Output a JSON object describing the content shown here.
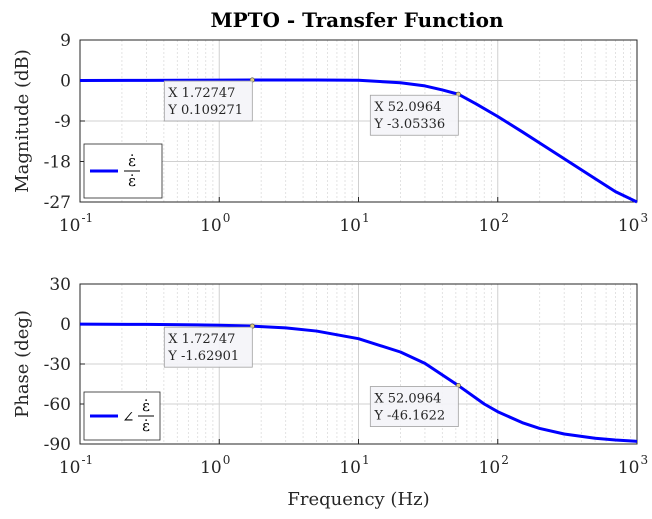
{
  "chart_data": [
    {
      "type": "line",
      "title": "MPTO - Transfer Function",
      "xlabel": "",
      "ylabel": "Magnitude (dB)",
      "xscale": "log",
      "xlim": [
        0.1,
        1000
      ],
      "ylim": [
        -27,
        9
      ],
      "x_ticks": [
        {
          "value": 0.1,
          "base": "10",
          "exp": "-1"
        },
        {
          "value": 1,
          "base": "10",
          "exp": "0"
        },
        {
          "value": 10,
          "base": "10",
          "exp": "1"
        },
        {
          "value": 100,
          "base": "10",
          "exp": "2"
        },
        {
          "value": 1000,
          "base": "10",
          "exp": "3"
        }
      ],
      "y_ticks": [
        9,
        0,
        -9,
        -18,
        -27
      ],
      "grid": "on",
      "legend": {
        "location": "bottom-left",
        "entry": "ε̇ / ε̇"
      },
      "series": [
        {
          "color": "#0000ff",
          "x": [
            0.1,
            0.3,
            1,
            1.72747,
            3,
            5,
            10,
            20,
            30,
            40,
            52.0964,
            70,
            100,
            150,
            200,
            300,
            500,
            700,
            1000
          ],
          "y": [
            0.0,
            0.02,
            0.08,
            0.109271,
            0.12,
            0.11,
            0.06,
            -0.5,
            -1.2,
            -2.1,
            -3.05336,
            -5.2,
            -8.0,
            -11.4,
            -13.9,
            -17.4,
            -21.8,
            -24.7,
            -27.0
          ]
        }
      ],
      "datatips": [
        {
          "x": 1.72747,
          "y": 0.109271,
          "x_text": "X 1.72747",
          "y_text": "Y 0.109271"
        },
        {
          "x": 52.0964,
          "y": -3.05336,
          "x_text": "X 52.0964",
          "y_text": "Y -3.05336"
        }
      ]
    },
    {
      "type": "line",
      "title": "",
      "xlabel": "Frequency (Hz)",
      "ylabel": "Phase (deg)",
      "xscale": "log",
      "xlim": [
        0.1,
        1000
      ],
      "ylim": [
        -90,
        30
      ],
      "x_ticks": [
        {
          "value": 0.1,
          "base": "10",
          "exp": "-1"
        },
        {
          "value": 1,
          "base": "10",
          "exp": "0"
        },
        {
          "value": 10,
          "base": "10",
          "exp": "1"
        },
        {
          "value": 100,
          "base": "10",
          "exp": "2"
        },
        {
          "value": 1000,
          "base": "10",
          "exp": "3"
        }
      ],
      "y_ticks": [
        30,
        0,
        -30,
        -60,
        -90
      ],
      "grid": "on",
      "legend": {
        "location": "bottom-left",
        "entry": "∠ ε̇ / ε̇"
      },
      "series": [
        {
          "color": "#0000ff",
          "x": [
            0.1,
            0.3,
            0.7,
            1,
            1.72747,
            3,
            5,
            10,
            20,
            30,
            52.0964,
            80,
            100,
            150,
            200,
            300,
            500,
            700,
            1000
          ],
          "y": [
            -0.1,
            -0.3,
            -0.7,
            -0.95,
            -1.62901,
            -2.9,
            -5.3,
            -11.0,
            -21.0,
            -29.5,
            -46.1622,
            -60.0,
            -65.8,
            -74.0,
            -78.3,
            -82.5,
            -85.7,
            -87.0,
            -88.0
          ]
        }
      ],
      "datatips": [
        {
          "x": 1.72747,
          "y": -1.62901,
          "x_text": "X 1.72747",
          "y_text": "Y -1.62901"
        },
        {
          "x": 52.0964,
          "y": -46.1622,
          "x_text": "X 52.0964",
          "y_text": "Y -46.1622"
        }
      ]
    }
  ]
}
